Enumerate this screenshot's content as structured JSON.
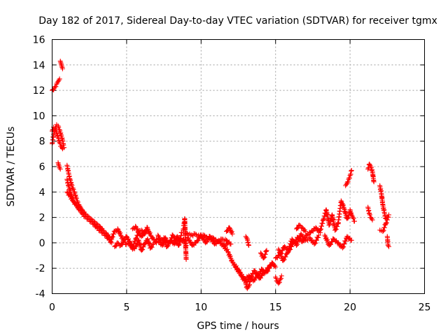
{
  "chart_data": {
    "type": "scatter",
    "title": "Day 182 of 2017, Sidereal Day-to-day VTEC variation (SDTVAR) for receiver tgmx",
    "xlabel": "GPS time / hours",
    "ylabel": "SDTVAR / TECUs",
    "xlim": [
      0,
      25
    ],
    "ylim": [
      -4,
      16
    ],
    "xticks": [
      0,
      5,
      10,
      15,
      20,
      25
    ],
    "yticks": [
      -4,
      -2,
      0,
      2,
      4,
      6,
      8,
      10,
      12,
      14,
      16
    ],
    "grid": true,
    "marker": "+",
    "marker_color": "#ff0000",
    "series": [
      {
        "name": "SDTVAR",
        "segments": [
          {
            "x": [
              0.0,
              0.15,
              0.3,
              0.4,
              0.5
            ],
            "y": [
              12.0,
              12.2,
              12.5,
              12.7,
              12.9
            ]
          },
          {
            "x": [
              0.55,
              0.6,
              0.65,
              0.7
            ],
            "y": [
              14.3,
              14.1,
              13.9,
              13.7
            ]
          },
          {
            "x": [
              0.0,
              0.1,
              0.2,
              0.3,
              0.4,
              0.5,
              0.6,
              0.7,
              0.75,
              0.8
            ],
            "y": [
              7.8,
              8.5,
              9.0,
              9.3,
              9.2,
              8.9,
              8.5,
              8.1,
              7.8,
              7.5
            ]
          },
          {
            "x": [
              0.0,
              0.1,
              0.2,
              0.3,
              0.4,
              0.5,
              0.6,
              0.7
            ],
            "y": [
              8.8,
              9.1,
              9.0,
              8.7,
              8.3,
              7.9,
              7.6,
              7.4
            ]
          },
          {
            "x": [
              0.4,
              0.45,
              0.5,
              0.55
            ],
            "y": [
              6.3,
              6.1,
              5.9,
              5.8
            ]
          },
          {
            "x": [
              1.0,
              1.1,
              1.2,
              1.3,
              1.4,
              1.5,
              1.6,
              1.7,
              1.8,
              1.9,
              2.0,
              2.2,
              2.4,
              2.6,
              2.8,
              3.0,
              3.2,
              3.4,
              3.6,
              3.8,
              4.0
            ],
            "y": [
              6.1,
              5.5,
              5.0,
              4.6,
              4.3,
              4.0,
              3.6,
              3.3,
              3.0,
              2.8,
              2.6,
              2.3,
              2.1,
              1.9,
              1.7,
              1.5,
              1.3,
              1.0,
              0.8,
              0.5,
              0.3
            ]
          },
          {
            "x": [
              1.0,
              1.1,
              1.2,
              1.3,
              1.4,
              1.5,
              1.6,
              1.7,
              1.8,
              1.9,
              2.0,
              2.2,
              2.4,
              2.6,
              2.8,
              3.0,
              3.2,
              3.4,
              3.6,
              3.8,
              4.0
            ],
            "y": [
              5.0,
              4.5,
              4.1,
              3.8,
              3.5,
              3.2,
              3.0,
              2.8,
              2.6,
              2.5,
              2.3,
              2.1,
              1.9,
              1.7,
              1.5,
              1.2,
              1.0,
              0.8,
              0.6,
              0.3,
              0.0
            ]
          },
          {
            "x": [
              1.0,
              1.2,
              1.4,
              1.6,
              1.8,
              2.0
            ],
            "y": [
              4.0,
              3.7,
              3.3,
              3.0,
              2.8,
              2.6
            ]
          },
          {
            "x": [
              4.0,
              4.2,
              4.4,
              4.6,
              4.8,
              5.0,
              5.2,
              5.4,
              5.6,
              5.8,
              6.0,
              6.2,
              6.4,
              6.6,
              6.8,
              7.0
            ],
            "y": [
              0.4,
              0.9,
              1.1,
              0.6,
              0.2,
              0.5,
              0.1,
              -0.4,
              0.3,
              0.8,
              0.5,
              0.9,
              1.1,
              0.6,
              0.3,
              0.0
            ]
          },
          {
            "x": [
              4.2,
              4.4,
              4.6,
              4.8,
              5.0,
              5.2,
              5.4,
              5.6,
              5.8,
              6.0,
              6.2,
              6.4,
              6.6,
              6.8
            ],
            "y": [
              -0.3,
              0.0,
              -0.2,
              0.1,
              -0.1,
              0.0,
              -0.5,
              -0.3,
              0.2,
              -0.6,
              -0.1,
              0.3,
              -0.4,
              -0.1
            ]
          },
          {
            "x": [
              5.4,
              5.6,
              5.8,
              6.0,
              6.2,
              6.4
            ],
            "y": [
              1.1,
              1.3,
              0.9,
              1.0,
              0.7,
              1.2
            ]
          },
          {
            "x": [
              7.0,
              7.2,
              7.4,
              7.6,
              7.8,
              8.0,
              8.2,
              8.4,
              8.6,
              8.8,
              9.0
            ],
            "y": [
              0.3,
              0.1,
              -0.2,
              0.4,
              0.0,
              0.2,
              -0.1,
              0.5,
              0.1,
              0.3,
              -0.2
            ]
          },
          {
            "x": [
              7.1,
              7.3,
              7.5,
              7.7,
              7.9,
              8.1,
              8.3,
              8.5,
              8.7
            ],
            "y": [
              0.6,
              0.2,
              0.4,
              -0.3,
              0.1,
              0.6,
              0.2,
              -0.2,
              0.8
            ]
          },
          {
            "x": [
              8.8,
              8.85,
              8.9,
              8.95,
              9.0
            ],
            "y": [
              1.0,
              1.5,
              1.9,
              0.0,
              -1.3
            ]
          },
          {
            "x": [
              9.0,
              9.3,
              9.6,
              9.9,
              10.2,
              10.5,
              10.8,
              11.1,
              11.4,
              11.7,
              12.0
            ],
            "y": [
              0.8,
              0.6,
              0.7,
              0.5,
              0.6,
              0.3,
              0.4,
              0.1,
              0.3,
              0.2,
              -0.1
            ]
          },
          {
            "x": [
              9.1,
              9.4,
              9.7,
              10.0,
              10.3,
              10.6,
              10.9,
              11.2,
              11.5,
              11.8
            ],
            "y": [
              0.4,
              -0.2,
              0.1,
              0.6,
              0.0,
              0.5,
              -0.1,
              0.2,
              -0.3,
              0.0
            ]
          },
          {
            "x": [
              11.5,
              11.8,
              12.1,
              12.4,
              12.7,
              13.0,
              13.3,
              13.6,
              13.9,
              14.2,
              14.5,
              14.8,
              15.0
            ],
            "y": [
              -0.2,
              -0.7,
              -1.5,
              -2.0,
              -2.6,
              -3.1,
              -2.7,
              -2.2,
              -2.8,
              -2.4,
              -2.0,
              -1.6,
              -1.9
            ]
          },
          {
            "x": [
              12.3,
              12.6,
              12.9,
              13.2,
              13.5,
              13.8,
              14.1,
              14.4,
              14.7
            ],
            "y": [
              -1.9,
              -2.3,
              -2.9,
              -2.6,
              -3.0,
              -2.5,
              -2.1,
              -2.3,
              -1.7
            ]
          },
          {
            "x": [
              11.7,
              11.9,
              12.1
            ],
            "y": [
              0.9,
              1.2,
              0.7
            ]
          },
          {
            "x": [
              13.0,
              13.1,
              13.2
            ],
            "y": [
              0.5,
              0.3,
              -0.2
            ]
          },
          {
            "x": [
              13.0,
              13.1,
              13.2,
              13.3
            ],
            "y": [
              -3.2,
              -3.6,
              -3.4,
              -3.0
            ]
          },
          {
            "x": [
              14.0,
              14.2,
              14.4
            ],
            "y": [
              -0.8,
              -1.2,
              -0.6
            ]
          },
          {
            "x": [
              15.0,
              15.1,
              15.2,
              15.3,
              15.4
            ],
            "y": [
              -2.7,
              -3.0,
              -3.2,
              -2.9,
              -2.6
            ]
          },
          {
            "x": [
              15.0,
              15.3,
              15.6,
              15.9,
              16.2,
              16.5,
              16.8,
              17.1,
              17.4,
              17.7,
              18.0
            ],
            "y": [
              -1.2,
              -0.9,
              -0.3,
              -0.6,
              0.0,
              0.4,
              0.1,
              0.6,
              0.9,
              1.2,
              0.8
            ]
          },
          {
            "x": [
              15.2,
              15.5,
              15.8,
              16.1,
              16.4,
              16.7,
              17.0,
              17.3,
              17.6,
              17.9
            ],
            "y": [
              -0.5,
              -1.4,
              -0.8,
              0.3,
              -0.2,
              0.7,
              0.2,
              0.4,
              -0.1,
              0.6
            ]
          },
          {
            "x": [
              16.4,
              16.6,
              16.8,
              17.0
            ],
            "y": [
              1.1,
              1.4,
              1.2,
              0.9
            ]
          },
          {
            "x": [
              18.0,
              18.2,
              18.4,
              18.6,
              18.8,
              19.0,
              19.2,
              19.4,
              19.6,
              19.8,
              20.0
            ],
            "y": [
              1.0,
              1.8,
              2.6,
              1.4,
              2.2,
              1.0,
              1.5,
              3.3,
              2.7,
              1.9,
              2.4
            ]
          },
          {
            "x": [
              18.3,
              18.6,
              18.9,
              19.2,
              19.5,
              19.8,
              20.1
            ],
            "y": [
              0.6,
              -0.2,
              0.3,
              0.0,
              -0.4,
              0.5,
              0.2
            ]
          },
          {
            "x": [
              19.7,
              19.8,
              19.9,
              20.0,
              20.1
            ],
            "y": [
              4.5,
              4.7,
              5.0,
              5.3,
              5.7
            ]
          },
          {
            "x": [
              20.0,
              20.1,
              20.2,
              20.3
            ],
            "y": [
              2.6,
              2.2,
              2.0,
              1.7
            ]
          },
          {
            "x": [
              21.2,
              21.3,
              21.4,
              21.5,
              21.6
            ],
            "y": [
              5.8,
              6.2,
              6.0,
              5.6,
              4.8
            ]
          },
          {
            "x": [
              21.2,
              21.3,
              21.4,
              21.5
            ],
            "y": [
              2.8,
              2.3,
              2.0,
              1.8
            ]
          },
          {
            "x": [
              22.0,
              22.1,
              22.2,
              22.3,
              22.4
            ],
            "y": [
              4.5,
              3.9,
              3.0,
              2.4,
              1.9
            ]
          },
          {
            "x": [
              22.0,
              22.2,
              22.4,
              22.6
            ],
            "y": [
              1.0,
              0.9,
              1.5,
              2.2
            ]
          },
          {
            "x": [
              22.5,
              22.55,
              22.6
            ],
            "y": [
              0.5,
              -0.2,
              -0.3
            ]
          }
        ]
      }
    ]
  }
}
